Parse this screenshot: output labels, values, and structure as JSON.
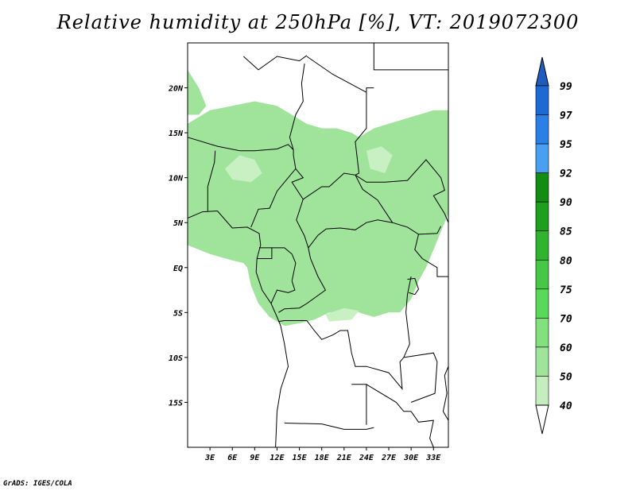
{
  "title": "Relative humidity at 250hPa [%], VT: 2019072300",
  "credit": "GrADS: IGES/COLA",
  "map": {
    "lon_range": [
      0,
      35
    ],
    "lat_range": [
      -20,
      25
    ],
    "lat_ticks": [
      {
        "value": 20,
        "label": "20N"
      },
      {
        "value": 15,
        "label": "15N"
      },
      {
        "value": 10,
        "label": "10N"
      },
      {
        "value": 5,
        "label": "5N"
      },
      {
        "value": 0,
        "label": "EQ"
      },
      {
        "value": -5,
        "label": "5S"
      },
      {
        "value": -10,
        "label": "10S"
      },
      {
        "value": -15,
        "label": "15S"
      }
    ],
    "lon_ticks": [
      {
        "value": 3,
        "label": "3E"
      },
      {
        "value": 6,
        "label": "6E"
      },
      {
        "value": 9,
        "label": "9E"
      },
      {
        "value": 12,
        "label": "12E"
      },
      {
        "value": 15,
        "label": "15E"
      },
      {
        "value": 18,
        "label": "18E"
      },
      {
        "value": 21,
        "label": "21E"
      },
      {
        "value": 24,
        "label": "24E"
      },
      {
        "value": 27,
        "label": "27E"
      },
      {
        "value": 30,
        "label": "30E"
      },
      {
        "value": 33,
        "label": "33E"
      }
    ],
    "fill_color": "#a0e49c",
    "fill_color_light": "#c8f0c2",
    "border_color": "#000000"
  },
  "colorbar": {
    "levels": [
      {
        "label": "99",
        "color": "#1e6ad4"
      },
      {
        "label": "97",
        "color": "#2a80e6"
      },
      {
        "label": "95",
        "color": "#4aa0f0"
      },
      {
        "label": "92",
        "color": "#138c13"
      },
      {
        "label": "90",
        "color": "#1ea01e"
      },
      {
        "label": "85",
        "color": "#30b430"
      },
      {
        "label": "80",
        "color": "#46c846"
      },
      {
        "label": "75",
        "color": "#5ad85a"
      },
      {
        "label": "70",
        "color": "#82e07e"
      },
      {
        "label": "60",
        "color": "#a0e49c"
      },
      {
        "label": "50",
        "color": "#c4eebe"
      },
      {
        "label": "40",
        "color": "#e0f8dc"
      }
    ],
    "top_color": "#1e5cc0",
    "bottom_color": "#ffffff"
  }
}
